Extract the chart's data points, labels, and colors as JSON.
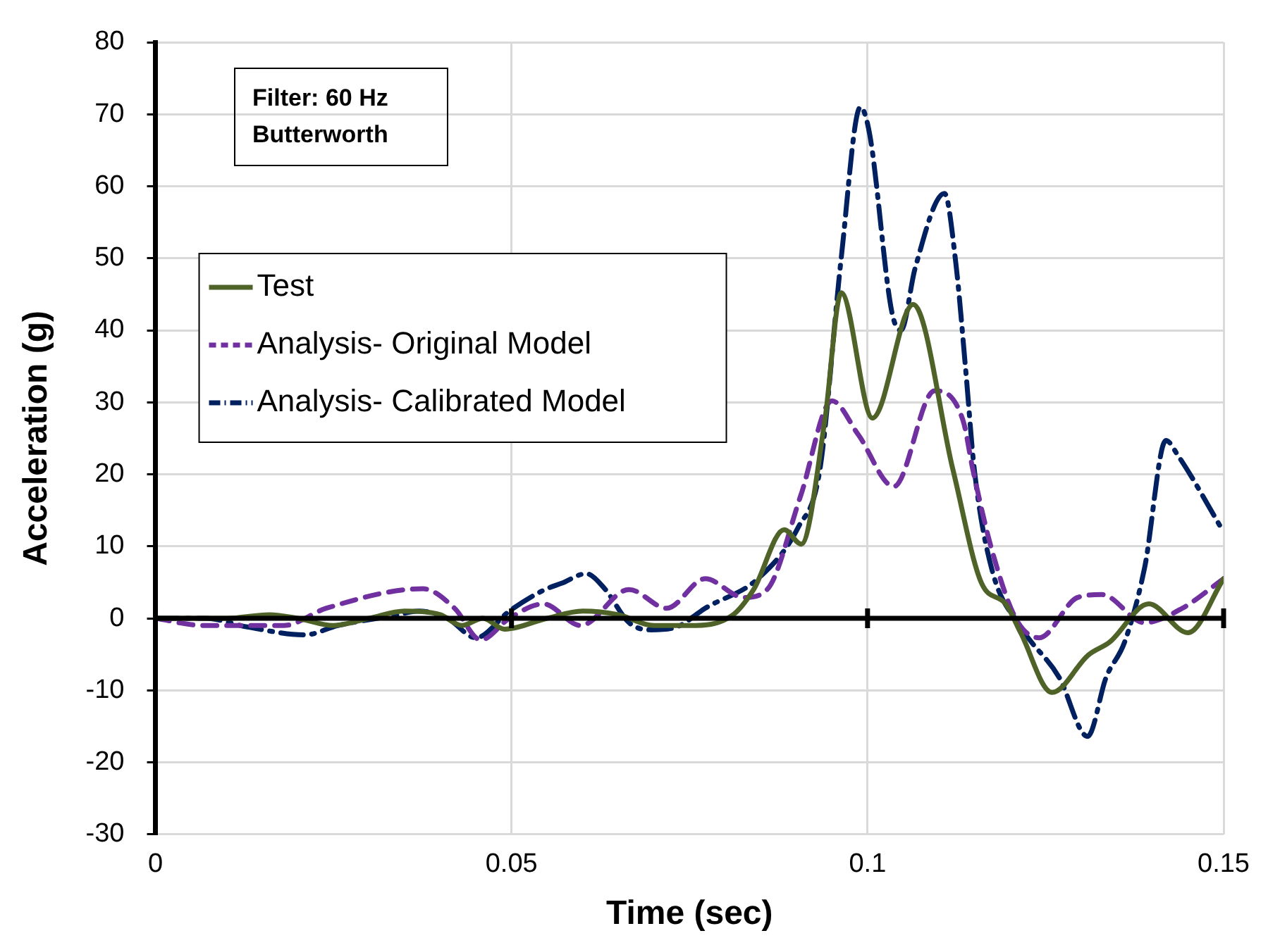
{
  "chart_data": {
    "type": "line",
    "xlabel": "Time (sec)",
    "ylabel": "Acceleration (g)",
    "annotations": [
      "Filter: 60 Hz Butterworth"
    ],
    "xlim": [
      0,
      0.15
    ],
    "xticks": [
      0,
      0.05,
      0.1,
      0.15
    ],
    "ylim": [
      -30,
      80
    ],
    "yticks": [
      -30,
      -20,
      -10,
      0,
      10,
      20,
      30,
      40,
      50,
      60,
      70,
      80
    ],
    "grid": true,
    "legend": "left",
    "marker": "none",
    "ref_lines": [
      {
        "axis": "y",
        "value": 0,
        "color": "#000000"
      }
    ],
    "series": [
      {
        "name": "Test",
        "color": "#4f6228",
        "line_style": "solid",
        "x": [
          0,
          0.01,
          0.016,
          0.02,
          0.025,
          0.03,
          0.035,
          0.04,
          0.043,
          0.046,
          0.049,
          0.055,
          0.06,
          0.065,
          0.07,
          0.075,
          0.081,
          0.084,
          0.0883,
          0.0907,
          0.094,
          0.0963,
          0.1007,
          0.1064,
          0.112,
          0.116,
          0.1194,
          0.1215,
          0.1259,
          0.131,
          0.134,
          0.1395,
          0.145,
          0.15
        ],
        "values": [
          0,
          0,
          0.5,
          0,
          -1,
          0,
          1,
          0.5,
          -1,
          0,
          -1.5,
          0,
          1,
          0.5,
          -1,
          -1,
          0.4,
          4,
          12.3,
          10.3,
          27.5,
          45.2,
          27.8,
          43.6,
          20.6,
          4.9,
          2,
          -2,
          -10.3,
          -5.1,
          -3.3,
          2,
          -2,
          5.5
        ]
      },
      {
        "name": "Analysis- Original Model",
        "color": "#7030a0",
        "line_style": "dashed",
        "x": [
          0,
          0.0068,
          0.018,
          0.024,
          0.0376,
          0.042,
          0.0457,
          0.0497,
          0.0545,
          0.0597,
          0.0665,
          0.0718,
          0.0772,
          0.0826,
          0.0859,
          0.0906,
          0.095,
          0.0987,
          0.1037,
          0.1094,
          0.1134,
          0.1148,
          0.1174,
          0.1208,
          0.1241,
          0.1295,
          0.1329,
          0.1389,
          0.1442,
          0.15
        ],
        "values": [
          0,
          -1,
          -1,
          1.4,
          4.1,
          1.4,
          -3,
          0,
          2,
          -1,
          4,
          1.4,
          5.5,
          2.9,
          4,
          17,
          30.2,
          25.5,
          18.3,
          31.6,
          27.5,
          20.6,
          9.7,
          0,
          -2.7,
          2.9,
          3.3,
          -0.6,
          1.4,
          5.5
        ]
      },
      {
        "name": "Analysis- Calibrated Model",
        "color": "#002060",
        "line_style": "dashdot",
        "x": [
          0,
          0.007,
          0.0129,
          0.021,
          0.0256,
          0.0336,
          0.037,
          0.041,
          0.045,
          0.0497,
          0.0545,
          0.0571,
          0.0605,
          0.0631,
          0.0665,
          0.0696,
          0.0732,
          0.0766,
          0.0772,
          0.0846,
          0.0903,
          0.0933,
          0.0963,
          0.099,
          0.1003,
          0.1034,
          0.1047,
          0.1067,
          0.1108,
          0.1124,
          0.1138,
          0.115,
          0.1174,
          0.1215,
          0.1269,
          0.1309,
          0.1335,
          0.1361,
          0.1389,
          0.1419,
          0.1436,
          0.15
        ],
        "values": [
          0,
          0,
          -1.2,
          -2.3,
          -1,
          0.4,
          1,
          0,
          -2.7,
          1,
          3.9,
          4.9,
          6.2,
          4.1,
          -0.6,
          -1.6,
          -1.2,
          1,
          1.4,
          5.5,
          12.7,
          20.6,
          50,
          71,
          67.2,
          42.6,
          40,
          48.7,
          59,
          49.3,
          34.3,
          20.6,
          7,
          -1.2,
          -8.2,
          -16.4,
          -8.2,
          -3.3,
          7,
          24.7,
          22.6,
          12
        ]
      }
    ]
  }
}
